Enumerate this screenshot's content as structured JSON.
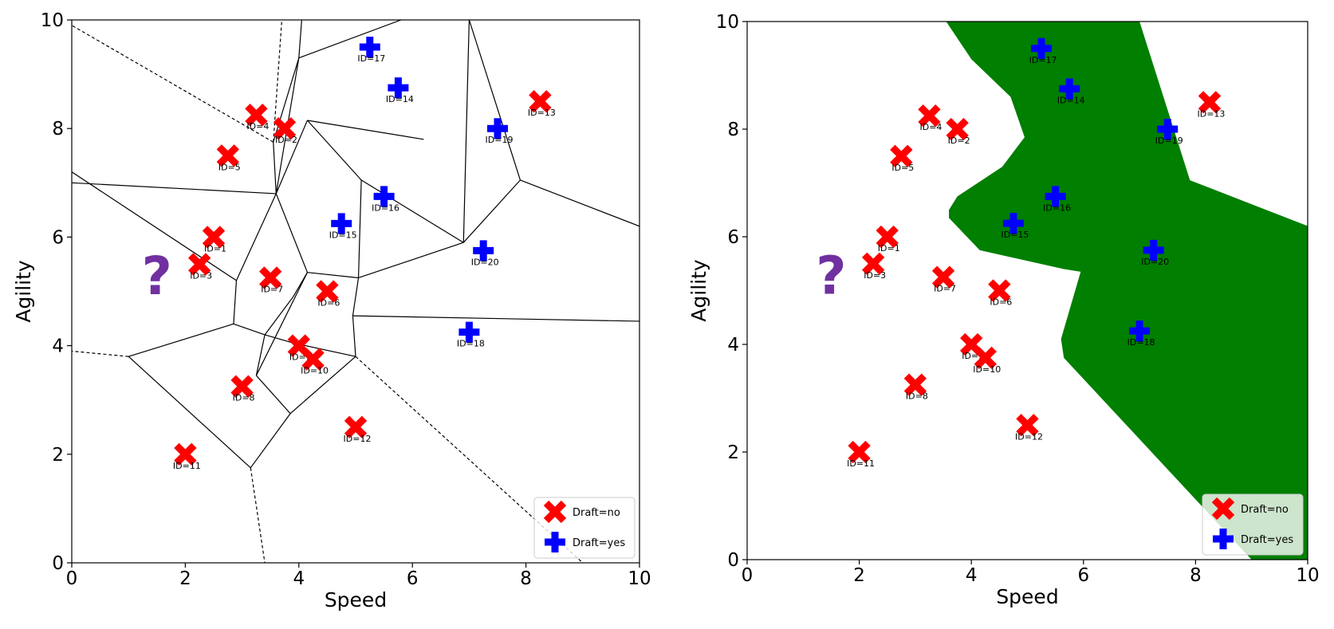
{
  "colors": {
    "draft_no": "#ff0000",
    "draft_yes": "#0000ff",
    "region_yes": "#007f00",
    "query": "#7030a0",
    "edge": "#000000"
  },
  "chart_data": [
    {
      "type": "scatter",
      "variant": "voronoi-diagram",
      "title": "",
      "xlabel": "Speed",
      "ylabel": "Agility",
      "xlim": [
        0,
        10
      ],
      "ylim": [
        0,
        10
      ],
      "xticks": [
        "0",
        "2",
        "4",
        "6",
        "8",
        "10"
      ],
      "yticks": [
        "0",
        "2",
        "4",
        "6",
        "8",
        "10"
      ],
      "grid": false,
      "legend_position": "lower right",
      "legend": [
        {
          "label": "Draft=no",
          "marker": "x",
          "color": "#ff0000"
        },
        {
          "label": "Draft=yes",
          "marker": "plus",
          "color": "#0000ff"
        }
      ],
      "query_marker": {
        "text": "?",
        "x": 1.5,
        "y": 5.3
      },
      "series": [
        {
          "name": "Draft=no",
          "points": [
            {
              "label": "ID=1",
              "x": 2.5,
              "y": 6.0
            },
            {
              "label": "ID=2",
              "x": 3.75,
              "y": 8.0
            },
            {
              "label": "ID=3",
              "x": 2.25,
              "y": 5.5
            },
            {
              "label": "ID=4",
              "x": 3.25,
              "y": 8.25
            },
            {
              "label": "ID=5",
              "x": 2.75,
              "y": 7.5
            },
            {
              "label": "ID=6",
              "x": 4.5,
              "y": 5.0
            },
            {
              "label": "ID=7",
              "x": 3.5,
              "y": 5.25
            },
            {
              "label": "ID=8",
              "x": 3.0,
              "y": 3.25
            },
            {
              "label": "ID=9",
              "x": 4.0,
              "y": 4.0
            },
            {
              "label": "ID=10",
              "x": 4.25,
              "y": 3.75
            },
            {
              "label": "ID=11",
              "x": 2.0,
              "y": 2.0
            },
            {
              "label": "ID=12",
              "x": 5.0,
              "y": 2.5
            },
            {
              "label": "ID=13",
              "x": 8.25,
              "y": 8.5
            }
          ]
        },
        {
          "name": "Draft=yes",
          "points": [
            {
              "label": "ID=14",
              "x": 5.75,
              "y": 8.75
            },
            {
              "label": "ID=15",
              "x": 4.75,
              "y": 6.25
            },
            {
              "label": "ID=16",
              "x": 5.5,
              "y": 6.75
            },
            {
              "label": "ID=17",
              "x": 5.25,
              "y": 9.5
            },
            {
              "label": "ID=18",
              "x": 7.0,
              "y": 4.25
            },
            {
              "label": "ID=19",
              "x": 7.5,
              "y": 8.0
            },
            {
              "label": "ID=20",
              "x": 7.25,
              "y": 5.75
            }
          ]
        }
      ],
      "voronoi_edges": [
        [
          [
            3.55,
            7.75
          ],
          [
            4.0,
            9.3
          ]
        ],
        [
          [
            4.0,
            9.3
          ],
          [
            4.05,
            10.0
          ]
        ],
        [
          [
            4.0,
            9.3
          ],
          [
            3.6,
            6.8
          ]
        ],
        [
          [
            3.6,
            6.8
          ],
          [
            4.15,
            8.15
          ]
        ],
        [
          [
            4.15,
            8.15
          ],
          [
            6.2,
            7.8
          ]
        ],
        [
          [
            4.15,
            8.15
          ],
          [
            5.1,
            7.05
          ]
        ],
        [
          [
            5.1,
            7.05
          ],
          [
            6.9,
            5.9
          ]
        ],
        [
          [
            6.9,
            5.9
          ],
          [
            7.0,
            10.0
          ]
        ],
        [
          [
            7.0,
            10.0
          ],
          [
            7.9,
            7.05
          ]
        ],
        [
          [
            7.9,
            7.05
          ],
          [
            10.0,
            6.2
          ]
        ],
        [
          [
            7.9,
            7.05
          ],
          [
            6.9,
            5.9
          ]
        ],
        [
          [
            6.9,
            5.9
          ],
          [
            5.05,
            5.25
          ]
        ],
        [
          [
            5.05,
            5.25
          ],
          [
            5.1,
            7.05
          ]
        ],
        [
          [
            5.05,
            5.25
          ],
          [
            4.95,
            4.55
          ]
        ],
        [
          [
            4.95,
            4.55
          ],
          [
            10.0,
            4.45
          ]
        ],
        [
          [
            4.95,
            4.55
          ],
          [
            5.0,
            3.8
          ]
        ],
        [
          [
            5.0,
            3.8
          ],
          [
            3.9,
            4.05
          ]
        ],
        [
          [
            3.9,
            4.05
          ],
          [
            3.4,
            4.2
          ]
        ],
        [
          [
            3.4,
            4.2
          ],
          [
            3.9,
            4.9
          ]
        ],
        [
          [
            3.9,
            4.9
          ],
          [
            4.15,
            5.35
          ]
        ],
        [
          [
            4.15,
            5.35
          ],
          [
            5.05,
            5.25
          ]
        ],
        [
          [
            4.15,
            5.35
          ],
          [
            3.6,
            6.8
          ]
        ],
        [
          [
            3.6,
            6.8
          ],
          [
            2.9,
            5.2
          ]
        ],
        [
          [
            2.9,
            5.2
          ],
          [
            2.85,
            4.4
          ]
        ],
        [
          [
            2.85,
            4.4
          ],
          [
            3.4,
            4.2
          ]
        ],
        [
          [
            3.4,
            4.2
          ],
          [
            3.25,
            3.45
          ]
        ],
        [
          [
            3.25,
            3.45
          ],
          [
            4.15,
            5.35
          ]
        ],
        [
          [
            3.25,
            3.45
          ],
          [
            3.85,
            2.75
          ]
        ],
        [
          [
            3.85,
            2.75
          ],
          [
            5.0,
            3.8
          ]
        ],
        [
          [
            3.85,
            2.75
          ],
          [
            3.15,
            1.75
          ]
        ],
        [
          [
            3.15,
            1.75
          ],
          [
            1.0,
            3.8
          ]
        ],
        [
          [
            1.0,
            3.8
          ],
          [
            2.85,
            4.4
          ]
        ],
        [
          [
            2.9,
            5.2
          ],
          [
            0.0,
            7.2
          ]
        ],
        [
          [
            3.55,
            7.75
          ],
          [
            3.6,
            6.8
          ]
        ],
        [
          [
            3.6,
            6.8
          ],
          [
            0.0,
            7.0
          ]
        ],
        [
          [
            5.8,
            10.0
          ],
          [
            4.0,
            9.3
          ]
        ]
      ],
      "voronoi_dashed_edges": [
        [
          [
            1.0,
            3.8
          ],
          [
            0.0,
            3.9
          ]
        ],
        [
          [
            3.15,
            1.75
          ],
          [
            3.4,
            0.0
          ]
        ],
        [
          [
            5.0,
            3.8
          ],
          [
            9.0,
            0.0
          ]
        ],
        [
          [
            3.55,
            7.75
          ],
          [
            0.0,
            9.9
          ]
        ],
        [
          [
            3.55,
            7.75
          ],
          [
            3.7,
            10.0
          ]
        ]
      ]
    },
    {
      "type": "scatter",
      "variant": "decision-regions",
      "title": "",
      "xlabel": "Speed",
      "ylabel": "Agility",
      "xlim": [
        0,
        10
      ],
      "ylim": [
        0,
        10
      ],
      "xticks": [
        "0",
        "2",
        "4",
        "6",
        "8",
        "10"
      ],
      "yticks": [
        "0",
        "2",
        "4",
        "6",
        "8",
        "10"
      ],
      "grid": false,
      "legend_position": "lower right",
      "legend": [
        {
          "label": "Draft=no",
          "marker": "x",
          "color": "#ff0000"
        },
        {
          "label": "Draft=yes",
          "marker": "plus",
          "color": "#0000ff"
        }
      ],
      "query_marker": {
        "text": "?",
        "x": 1.5,
        "y": 5.3
      },
      "region_draft_yes": [
        [
          3.55,
          10.0
        ],
        [
          7.0,
          10.0
        ],
        [
          7.9,
          7.05
        ],
        [
          10.0,
          6.2
        ],
        [
          10.0,
          0.0
        ],
        [
          9.0,
          0.0
        ],
        [
          5.65,
          3.75
        ],
        [
          5.6,
          4.1
        ],
        [
          5.95,
          5.35
        ],
        [
          5.65,
          5.4
        ],
        [
          4.15,
          5.75
        ],
        [
          3.6,
          6.35
        ],
        [
          3.6,
          6.5
        ],
        [
          3.75,
          6.75
        ],
        [
          4.55,
          7.3
        ],
        [
          4.95,
          7.85
        ],
        [
          4.7,
          8.6
        ],
        [
          4.0,
          9.3
        ]
      ],
      "series": [
        {
          "name": "Draft=no",
          "points": [
            {
              "label": "ID=1",
              "x": 2.5,
              "y": 6.0
            },
            {
              "label": "ID=2",
              "x": 3.75,
              "y": 8.0
            },
            {
              "label": "ID=3",
              "x": 2.25,
              "y": 5.5
            },
            {
              "label": "ID=4",
              "x": 3.25,
              "y": 8.25
            },
            {
              "label": "ID=5",
              "x": 2.75,
              "y": 7.5
            },
            {
              "label": "ID=6",
              "x": 4.5,
              "y": 5.0
            },
            {
              "label": "ID=7",
              "x": 3.5,
              "y": 5.25
            },
            {
              "label": "ID=8",
              "x": 3.0,
              "y": 3.25
            },
            {
              "label": "ID=9",
              "x": 4.0,
              "y": 4.0
            },
            {
              "label": "ID=10",
              "x": 4.25,
              "y": 3.75
            },
            {
              "label": "ID=11",
              "x": 2.0,
              "y": 2.0
            },
            {
              "label": "ID=12",
              "x": 5.0,
              "y": 2.5
            },
            {
              "label": "ID=13",
              "x": 8.25,
              "y": 8.5
            }
          ]
        },
        {
          "name": "Draft=yes",
          "points": [
            {
              "label": "ID=14",
              "x": 5.75,
              "y": 8.75
            },
            {
              "label": "ID=15",
              "x": 4.75,
              "y": 6.25
            },
            {
              "label": "ID=16",
              "x": 5.5,
              "y": 6.75
            },
            {
              "label": "ID=17",
              "x": 5.25,
              "y": 9.5
            },
            {
              "label": "ID=18",
              "x": 7.0,
              "y": 4.25
            },
            {
              "label": "ID=19",
              "x": 7.5,
              "y": 8.0
            },
            {
              "label": "ID=20",
              "x": 7.25,
              "y": 5.75
            }
          ]
        }
      ]
    }
  ]
}
